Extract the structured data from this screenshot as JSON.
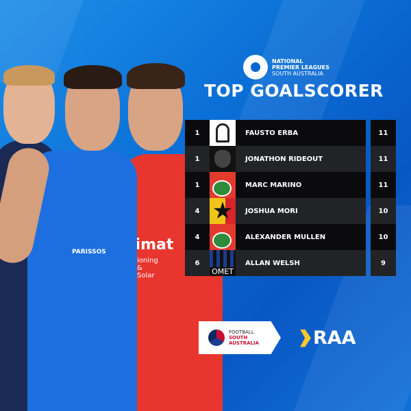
{
  "header": {
    "league_logo_text": [
      "NATIONAL",
      "PREMIER LEAGUES",
      "SOUTH AUSTRALIA"
    ],
    "title": "TOP GOALSCORER"
  },
  "leaderboard": [
    {
      "rank": "1",
      "name": "FAUSTO ERBA",
      "goals": "11",
      "crest": "spartan-helmet-crest"
    },
    {
      "rank": "1",
      "name": "JONATHON RIDEOUT",
      "goals": "11",
      "crest": "panther-crest"
    },
    {
      "rank": "1",
      "name": "MARC MARINO",
      "goals": "11",
      "crest": "campbelltown-city-crest"
    },
    {
      "rank": "4",
      "name": "JOSHUA MORI",
      "goals": "10",
      "crest": "star-crest"
    },
    {
      "rank": "4",
      "name": "ALEXANDER MULLEN",
      "goals": "10",
      "crest": "campbelltown-city-crest"
    },
    {
      "rank": "6",
      "name": "ALLAN WELSH",
      "goals": "9",
      "crest": "adelaide-comets-crest",
      "crest_text": "OMET"
    }
  ],
  "sponsors": {
    "fsa": {
      "line1": "FOOTBALL",
      "line2": "SOUTH",
      "line3": "AUSTRALIA"
    },
    "raa": "RAA"
  },
  "jersey_text": {
    "blue_sponsor": "PARISSOS",
    "red_sponsor": "limat",
    "red_sub": "ioning & Solar"
  },
  "colors": {
    "background": "#0a6fd6",
    "row_dark": "#0b0b0d",
    "row_mid": "#222326",
    "raa_yellow": "#ffc72c",
    "fsa_red": "#c8102e"
  }
}
